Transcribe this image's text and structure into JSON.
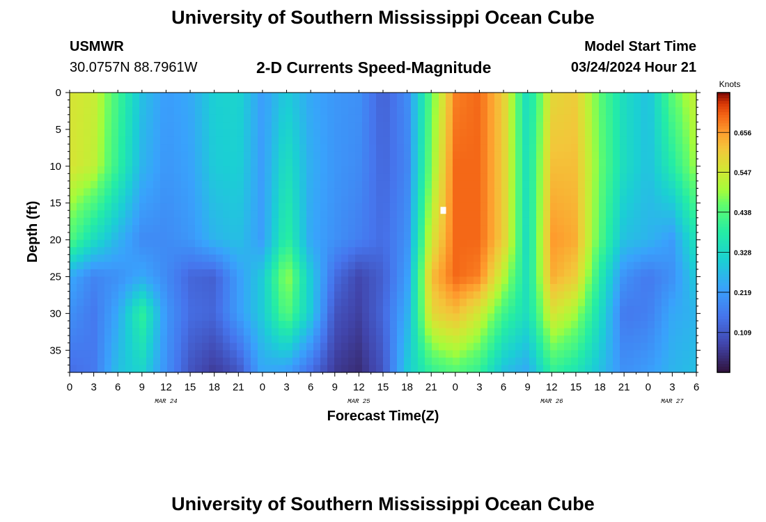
{
  "header": {
    "title": "University of Southern Mississippi Ocean Cube",
    "station": "USMWR",
    "coords": "30.0757N  88.7961W",
    "subtitle": "2-D Currents Speed-Magnitude",
    "model_start_label": "Model Start Time",
    "model_start_value": "03/24/2024 Hour 21"
  },
  "footer": {
    "title": "University of Southern Mississippi Ocean Cube"
  },
  "chart_data": {
    "type": "heatmap",
    "title": "2-D Currents Speed-Magnitude",
    "xlabel": "Forecast Time(Z)",
    "ylabel": "Depth (ft)",
    "x_tick_labels": [
      "0",
      "3",
      "6",
      "9",
      "12",
      "15",
      "18",
      "21",
      "0",
      "3",
      "6",
      "9",
      "12",
      "15",
      "18",
      "21",
      "0",
      "3",
      "6",
      "9",
      "12",
      "15",
      "18",
      "21",
      "0",
      "3",
      "6"
    ],
    "date_labels": [
      {
        "label": "MAR 24",
        "x": 12
      },
      {
        "label": "MAR 25",
        "x": 36
      },
      {
        "label": "MAR 26",
        "x": 60
      },
      {
        "label": "MAR 27",
        "x": 75
      }
    ],
    "x_range_hours": [
      0,
      78
    ],
    "y_tick_labels": [
      "0",
      "5",
      "10",
      "15",
      "20",
      "25",
      "30",
      "35"
    ],
    "y_range_ft": [
      0,
      38
    ],
    "colorbar": {
      "label": "Knots",
      "ticks": [
        "0.656",
        "0.547",
        "0.438",
        "0.328",
        "0.219",
        "0.109"
      ],
      "tick_values": [
        0.656,
        0.547,
        0.438,
        0.328,
        0.219,
        0.109
      ],
      "range": [
        0.0,
        0.765
      ]
    },
    "depth_levels_ft": [
      0,
      10,
      20,
      25,
      30,
      38
    ],
    "time_hours": [
      0,
      3,
      6,
      9,
      12,
      15,
      18,
      21,
      24,
      27,
      30,
      33,
      36,
      39,
      42,
      45,
      48,
      51,
      54,
      57,
      60,
      63,
      66,
      69,
      72,
      75,
      78
    ],
    "speed_knots": [
      [
        0.56,
        0.54,
        0.42,
        0.28,
        0.22,
        0.24,
        0.31,
        0.32,
        0.22,
        0.3,
        0.24,
        0.21,
        0.2,
        0.12,
        0.19,
        0.45,
        0.68,
        0.7,
        0.6,
        0.33,
        0.58,
        0.6,
        0.45,
        0.34,
        0.28,
        0.45,
        0.54
      ],
      [
        0.56,
        0.53,
        0.4,
        0.26,
        0.21,
        0.23,
        0.3,
        0.31,
        0.22,
        0.35,
        0.25,
        0.21,
        0.19,
        0.13,
        0.18,
        0.48,
        0.7,
        0.7,
        0.6,
        0.34,
        0.62,
        0.62,
        0.46,
        0.34,
        0.28,
        0.38,
        0.5
      ],
      [
        0.44,
        0.34,
        0.26,
        0.19,
        0.19,
        0.21,
        0.26,
        0.28,
        0.22,
        0.4,
        0.24,
        0.2,
        0.17,
        0.14,
        0.2,
        0.55,
        0.7,
        0.7,
        0.6,
        0.33,
        0.66,
        0.64,
        0.44,
        0.28,
        0.26,
        0.22,
        0.36
      ],
      [
        0.24,
        0.18,
        0.2,
        0.24,
        0.19,
        0.13,
        0.12,
        0.22,
        0.3,
        0.5,
        0.3,
        0.14,
        0.08,
        0.12,
        0.22,
        0.62,
        0.7,
        0.68,
        0.52,
        0.34,
        0.64,
        0.6,
        0.38,
        0.2,
        0.16,
        0.2,
        0.3
      ],
      [
        0.2,
        0.16,
        0.24,
        0.4,
        0.21,
        0.14,
        0.13,
        0.22,
        0.3,
        0.45,
        0.3,
        0.1,
        0.07,
        0.13,
        0.25,
        0.58,
        0.62,
        0.55,
        0.42,
        0.34,
        0.56,
        0.5,
        0.34,
        0.16,
        0.17,
        0.24,
        0.26
      ],
      [
        0.14,
        0.16,
        0.28,
        0.32,
        0.2,
        0.1,
        0.06,
        0.1,
        0.24,
        0.22,
        0.14,
        0.06,
        0.04,
        0.1,
        0.3,
        0.4,
        0.44,
        0.4,
        0.28,
        0.24,
        0.4,
        0.36,
        0.28,
        0.2,
        0.22,
        0.26,
        0.28
      ]
    ],
    "marker": {
      "x_hours": 46.5,
      "depth_ft": 16,
      "color": "#ffffff"
    }
  }
}
